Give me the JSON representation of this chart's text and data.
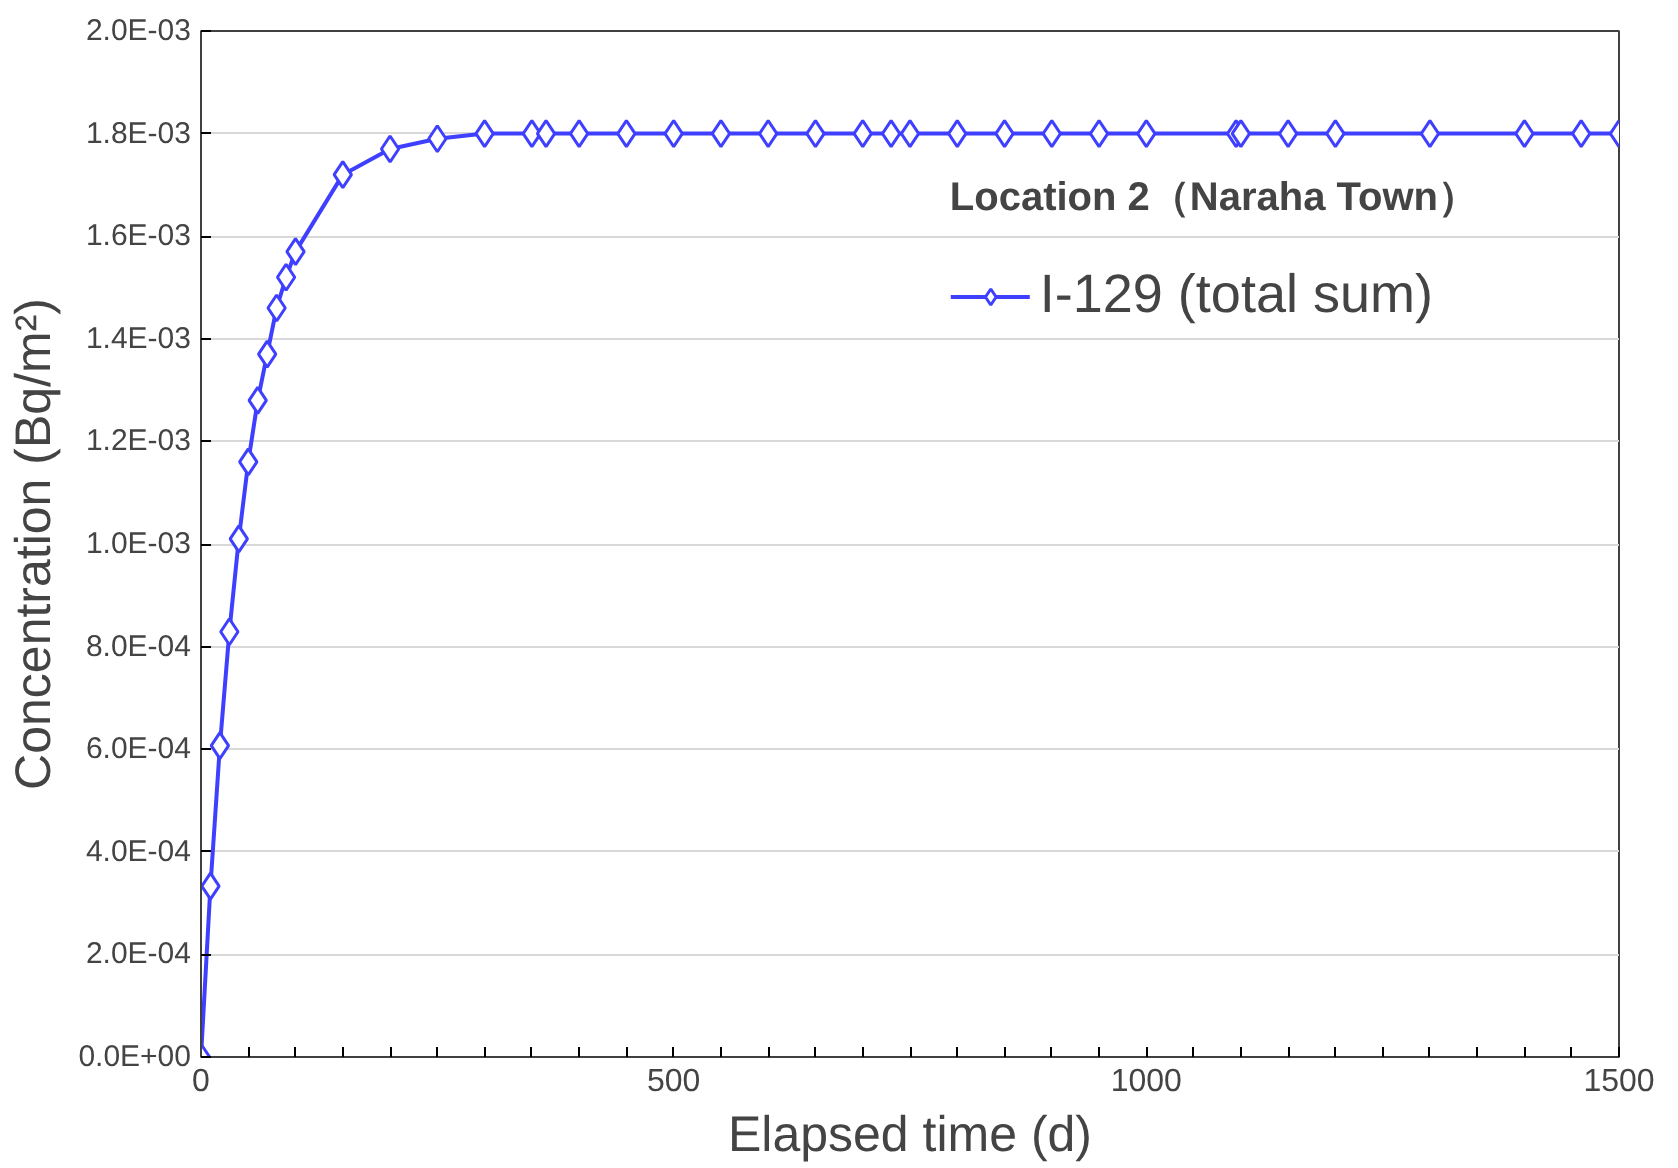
{
  "chart_data": {
    "type": "line",
    "xlabel": "Elapsed time (d)",
    "ylabel": "Concentration (Bq/m²)",
    "legend_title": "Location 2（Naraha Town）",
    "x": [
      0,
      10,
      20,
      30,
      40,
      50,
      60,
      70,
      80,
      90,
      100,
      150,
      200,
      250,
      300,
      350,
      365,
      400,
      450,
      500,
      550,
      600,
      650,
      700,
      730,
      750,
      800,
      850,
      900,
      950,
      1000,
      1095,
      1100,
      1150,
      1200,
      1300,
      1400,
      1460,
      1500
    ],
    "series": [
      {
        "name": "I-129 (total sum)",
        "color": "#3f3fff",
        "values": [
          0,
          0.000333,
          0.000607,
          0.000829,
          0.00101,
          0.00116,
          0.00128,
          0.00137,
          0.00146,
          0.00152,
          0.00157,
          0.00172,
          0.00177,
          0.00179,
          0.0018,
          0.0018,
          0.0018,
          0.0018,
          0.0018,
          0.0018,
          0.0018,
          0.0018,
          0.0018,
          0.0018,
          0.0018,
          0.0018,
          0.0018,
          0.0018,
          0.0018,
          0.0018,
          0.0018,
          0.0018,
          0.0018,
          0.0018,
          0.0018,
          0.0018,
          0.0018,
          0.0018,
          0.0018
        ]
      }
    ],
    "xlim": [
      0,
      1500
    ],
    "xticks": [
      0,
      {
        "value": 50,
        "label": null
      },
      {
        "value": 100,
        "label": null
      },
      {
        "value": 150,
        "label": null
      },
      {
        "value": 200,
        "label": null
      },
      {
        "value": 250,
        "label": null
      },
      {
        "value": 300,
        "label": null
      },
      {
        "value": 350,
        "label": null
      },
      {
        "value": 400,
        "label": null
      },
      {
        "value": 450,
        "label": null
      },
      500,
      {
        "value": 550,
        "label": null
      },
      {
        "value": 600,
        "label": null
      },
      {
        "value": 650,
        "label": null
      },
      {
        "value": 700,
        "label": null
      },
      {
        "value": 750,
        "label": null
      },
      {
        "value": 800,
        "label": null
      },
      {
        "value": 850,
        "label": null
      },
      {
        "value": 900,
        "label": null
      },
      {
        "value": 950,
        "label": null
      },
      1000,
      {
        "value": 1050,
        "label": null
      },
      {
        "value": 1100,
        "label": null
      },
      {
        "value": 1150,
        "label": null
      },
      {
        "value": 1200,
        "label": null
      },
      {
        "value": 1250,
        "label": null
      },
      {
        "value": 1300,
        "label": null
      },
      {
        "value": 1350,
        "label": null
      },
      {
        "value": 1400,
        "label": null
      },
      {
        "value": 1450,
        "label": null
      },
      1500
    ],
    "ylim": [
      0,
      0.002
    ],
    "yticks": [
      {
        "value": 0,
        "label": "0.0E+00"
      },
      {
        "value": 0.0002,
        "label": "2.0E-04"
      },
      {
        "value": 0.0004,
        "label": "4.0E-04"
      },
      {
        "value": 0.0006,
        "label": "6.0E-04"
      },
      {
        "value": 0.0008,
        "label": "8.0E-04"
      },
      {
        "value": 0.001,
        "label": "1.0E-03"
      },
      {
        "value": 0.0012,
        "label": "1.2E-03"
      },
      {
        "value": 0.0014,
        "label": "1.4E-03"
      },
      {
        "value": 0.0016,
        "label": "1.6E-03"
      },
      {
        "value": 0.0018,
        "label": "1.8E-03"
      },
      {
        "value": 0.002,
        "label": "2.0E-03"
      }
    ],
    "grid": "y",
    "legend": "top right",
    "marker": "diamond",
    "line_style": "solid"
  }
}
